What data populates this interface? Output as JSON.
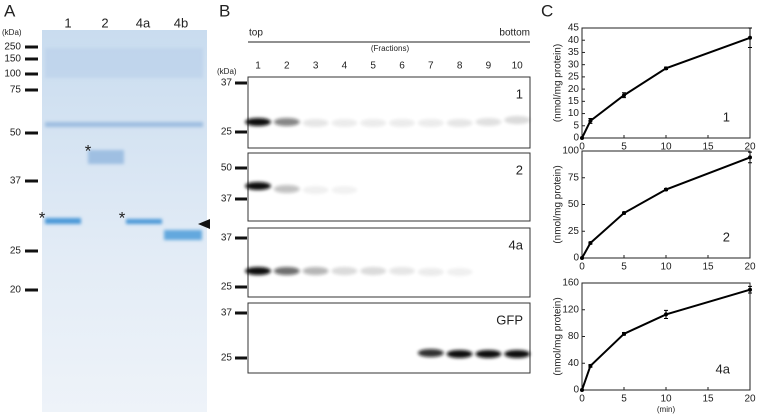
{
  "panel_a": {
    "letter": "A",
    "kda": "(kDa)",
    "lanes": [
      "1",
      "2",
      "4a",
      "4b"
    ],
    "markers": [
      "250",
      "150",
      "100",
      "75",
      "50",
      "37",
      "25",
      "20"
    ],
    "asterisks": [
      "*",
      "*",
      "*"
    ]
  },
  "panel_b": {
    "letter": "B",
    "top": "top",
    "bottom": "bottom",
    "fractions_label": "(Fractions)",
    "kda": "(kDa)",
    "fractions": [
      "1",
      "2",
      "3",
      "4",
      "5",
      "6",
      "7",
      "8",
      "9",
      "10"
    ],
    "blots": [
      {
        "label": "1",
        "markers": [
          "37",
          "25"
        ]
      },
      {
        "label": "2",
        "markers": [
          "50",
          "37"
        ]
      },
      {
        "label": "4a",
        "markers": [
          "37",
          "25"
        ]
      },
      {
        "label": "GFP",
        "markers": [
          "37",
          "25"
        ]
      }
    ]
  },
  "panel_c": {
    "letter": "C"
  },
  "chart_data": [
    {
      "type": "line",
      "label": "1",
      "ylabel": "(nmol/mg protein)",
      "x": [
        0,
        1,
        5,
        10,
        20
      ],
      "values": [
        0,
        7,
        17.5,
        28.5,
        41
      ],
      "errors": [
        0,
        1,
        1,
        0.5,
        4
      ],
      "color": "#000000",
      "xlim": [
        0,
        20
      ],
      "xticks": [
        0,
        5,
        10,
        15,
        20
      ],
      "ylim": [
        0,
        45
      ],
      "yticks": [
        0,
        5,
        10,
        15,
        20,
        25,
        30,
        35,
        40,
        45
      ]
    },
    {
      "type": "line",
      "label": "2",
      "ylabel": "(nmol/mg protein)",
      "x": [
        0,
        1,
        5,
        10,
        20
      ],
      "values": [
        0,
        14,
        42,
        64,
        94
      ],
      "errors": [
        0,
        1,
        1,
        1,
        5
      ],
      "color": "#000000",
      "xlim": [
        0,
        20
      ],
      "xticks": [
        0,
        5,
        10,
        15,
        20
      ],
      "ylim": [
        0,
        100
      ],
      "yticks": [
        0,
        25,
        50,
        75,
        100
      ]
    },
    {
      "type": "line",
      "label": "4a",
      "ylabel": "(nmol/mg protein)",
      "xlabel": "(min)",
      "x": [
        0,
        1,
        5,
        10,
        20
      ],
      "values": [
        0,
        36,
        84,
        113,
        150
      ],
      "errors": [
        0,
        2,
        2,
        6,
        5
      ],
      "color": "#000000",
      "xlim": [
        0,
        20
      ],
      "xticks": [
        0,
        5,
        10,
        15,
        20
      ],
      "ylim": [
        0,
        160
      ],
      "yticks": [
        0,
        40,
        80,
        120,
        160
      ]
    }
  ]
}
